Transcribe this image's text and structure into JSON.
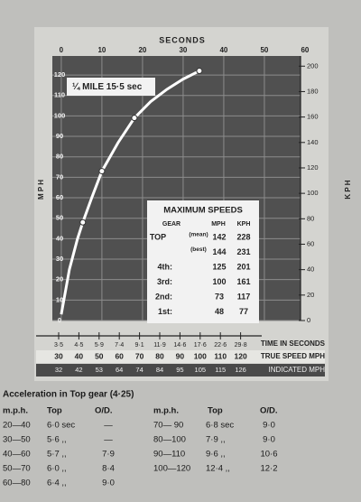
{
  "chart_data": {
    "type": "line",
    "title": "SECONDS",
    "ylabel": "M P H",
    "y2label": "K P H",
    "xlim": [
      -2.2,
      58.9
    ],
    "xticks": [
      0,
      10,
      20,
      30,
      40,
      50,
      60
    ],
    "ylim": [
      0,
      129.3
    ],
    "yticks": [
      0,
      10,
      20,
      30,
      40,
      50,
      60,
      70,
      80,
      90,
      100,
      110,
      120
    ],
    "y2lim": [
      0,
      208
    ],
    "y2ticks": [
      0,
      20,
      40,
      60,
      80,
      100,
      120,
      140,
      160,
      180,
      200
    ],
    "grid": true,
    "plot_color": "#505050",
    "grid_color": "#8c8c8c",
    "series": [
      {
        "style": "line",
        "color": "#ffffff",
        "x": [
          0,
          2,
          4,
          5.3,
          7.5,
          10,
          14,
          18,
          22,
          26,
          30,
          34
        ],
        "values": [
          3,
          25,
          40,
          48,
          60,
          73,
          87,
          99,
          107,
          113,
          118,
          122
        ]
      },
      {
        "style": "points",
        "color": "#ffffff",
        "x": [
          5.3,
          10,
          18,
          34
        ],
        "values": [
          48,
          73,
          99,
          122
        ]
      }
    ],
    "annotation": "¼ MILE 15·5 sec",
    "max_speeds": {
      "title": "MAXIMUM SPEEDS",
      "header": [
        "GEAR",
        "MPH",
        "KPH"
      ],
      "rows": [
        [
          "TOP",
          "(mean)",
          "142",
          "228"
        ],
        [
          "",
          "(best)",
          "144",
          "231"
        ],
        [
          "4th:",
          "",
          "125",
          "201"
        ],
        [
          "3rd:",
          "",
          "100",
          "161"
        ],
        [
          "2nd:",
          "",
          "73",
          "117"
        ],
        [
          "1st:",
          "",
          "48",
          "77"
        ]
      ]
    }
  },
  "speed_scale": {
    "time_label": "TIME IN SECONDS",
    "true_label": "TRUE SPEED MPH",
    "indicated_label": "INDICATED MPH",
    "times": [
      "3·5",
      "4·5",
      "5·9",
      "7·4",
      "9·1",
      "11·9",
      "14·6",
      "17·6",
      "22·6",
      "29·8"
    ],
    "true": [
      "30",
      "40",
      "50",
      "60",
      "70",
      "80",
      "90",
      "100",
      "110",
      "120"
    ],
    "indicated": [
      "32",
      "42",
      "53",
      "64",
      "74",
      "84",
      "95",
      "105",
      "115",
      "126"
    ]
  },
  "table": {
    "title": "Acceleration in Top gear (4·25)",
    "header": [
      "m.p.h.",
      "Top",
      "O/D.",
      "m.p.h.",
      "Top",
      "O/D."
    ],
    "left": [
      [
        "20—40",
        "6·0 sec",
        "—"
      ],
      [
        "30—50",
        "5·6  ,,",
        "—"
      ],
      [
        "40—60",
        "5·7  ,,",
        "7·9"
      ],
      [
        "50—70",
        "6·0  ,,",
        "8·4"
      ],
      [
        "60—80",
        "6·4  ,,",
        "9·0"
      ]
    ],
    "right": [
      [
        "70— 90",
        "6·8 sec",
        "9·0"
      ],
      [
        "80—100",
        "7·9  ,,",
        "9·0"
      ],
      [
        "90—110",
        "9·6  ,,",
        "10·6"
      ],
      [
        "100—120",
        "12·4  ,,",
        "12·2"
      ]
    ]
  }
}
